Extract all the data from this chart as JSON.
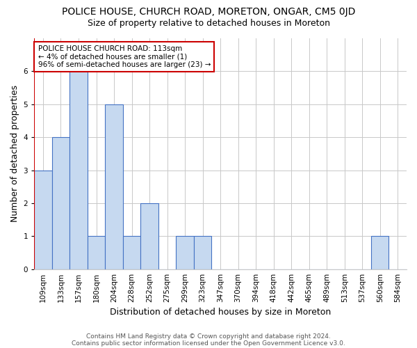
{
  "title": "POLICE HOUSE, CHURCH ROAD, MORETON, ONGAR, CM5 0JD",
  "subtitle": "Size of property relative to detached houses in Moreton",
  "xlabel": "Distribution of detached houses by size in Moreton",
  "ylabel": "Number of detached properties",
  "categories": [
    "109sqm",
    "133sqm",
    "157sqm",
    "180sqm",
    "204sqm",
    "228sqm",
    "252sqm",
    "275sqm",
    "299sqm",
    "323sqm",
    "347sqm",
    "370sqm",
    "394sqm",
    "418sqm",
    "442sqm",
    "465sqm",
    "489sqm",
    "513sqm",
    "537sqm",
    "560sqm",
    "584sqm"
  ],
  "values": [
    3,
    4,
    6,
    1,
    5,
    1,
    2,
    0,
    1,
    1,
    0,
    0,
    0,
    0,
    0,
    0,
    0,
    0,
    0,
    1,
    0
  ],
  "bar_color": "#c6d9f0",
  "bar_edge_color": "#4472c4",
  "highlight_line_color": "#cc0000",
  "highlight_bar_index": 0,
  "annotation_title": "POLICE HOUSE CHURCH ROAD: 113sqm",
  "annotation_line1": "← 4% of detached houses are smaller (1)",
  "annotation_line2": "96% of semi-detached houses are larger (23) →",
  "annotation_box_color": "#ffffff",
  "annotation_box_edge": "#cc0000",
  "ylim": [
    0,
    7
  ],
  "yticks": [
    0,
    1,
    2,
    3,
    4,
    5,
    6
  ],
  "footnote1": "Contains HM Land Registry data © Crown copyright and database right 2024.",
  "footnote2": "Contains public sector information licensed under the Open Government Licence v3.0.",
  "background_color": "#ffffff",
  "grid_color": "#c8c8c8",
  "title_fontsize": 10,
  "subtitle_fontsize": 9,
  "axis_label_fontsize": 9,
  "tick_fontsize": 7.5,
  "footnote_fontsize": 6.5
}
